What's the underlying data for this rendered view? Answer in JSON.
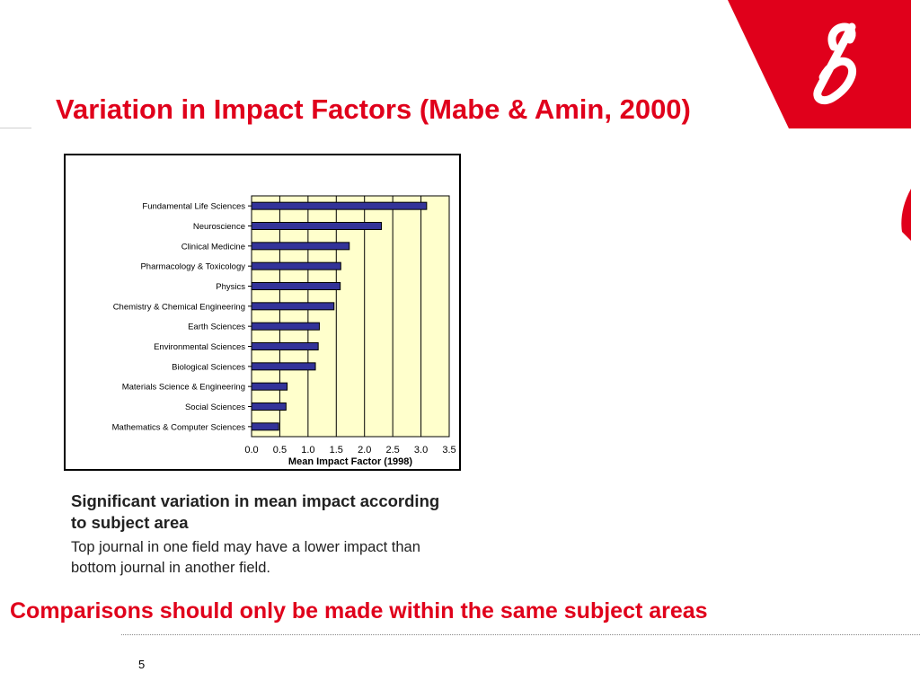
{
  "slide": {
    "title": "Variation in Impact Factors (Mabe & Amin, 2000)",
    "body_heading": "Significant variation in mean impact according to subject area",
    "body_text": "Top journal in one field may have a lower impact than bottom journal in another field.",
    "conclusion": "Comparisons should only be made within the same subject areas",
    "page_number": "5"
  },
  "logo": {
    "name": "b",
    "color": "#e0001b"
  },
  "chart_data": {
    "type": "bar",
    "orientation": "horizontal",
    "categories": [
      "Fundamental Life Sciences",
      "Neuroscience",
      "Clinical Medicine",
      "Pharmacology & Toxicology",
      "Physics",
      "Chemistry & Chemical Engineering",
      "Earth Sciences",
      "Environmental Sciences",
      "Biological Sciences",
      "Materials Science & Engineering",
      "Social Sciences",
      "Mathematics & Computer Sciences"
    ],
    "values": [
      3.1,
      2.3,
      1.73,
      1.58,
      1.57,
      1.46,
      1.2,
      1.18,
      1.13,
      0.63,
      0.61,
      0.48
    ],
    "xlabel": "Mean Impact Factor (1998)",
    "ylabel": "",
    "xlim": [
      0,
      3.5
    ],
    "xticks": [
      "0.0",
      "0.5",
      "1.0",
      "1.5",
      "2.0",
      "2.5",
      "3.0",
      "3.5"
    ],
    "grid": "vertical",
    "plot_background": "#ffffcc",
    "bar_color": "#333399"
  }
}
